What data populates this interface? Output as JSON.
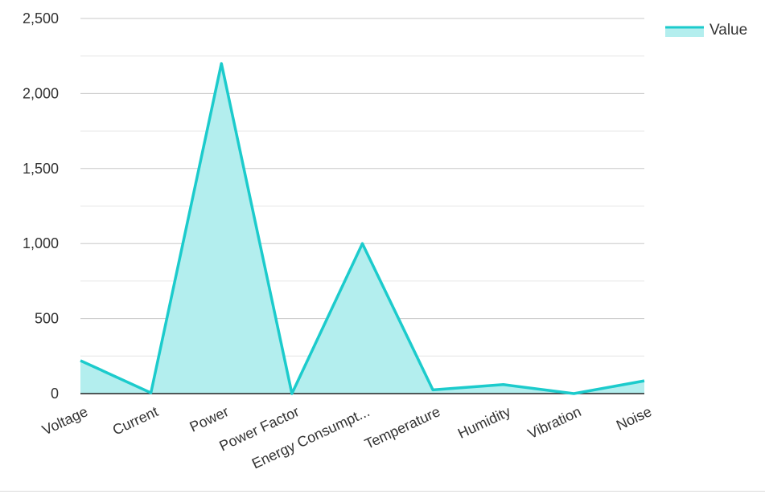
{
  "chart_data": {
    "type": "area",
    "categories": [
      "Voltage",
      "Current",
      "Power",
      "Power Factor",
      "Energy Consumpt...",
      "Temperature",
      "Humidity",
      "Vibration",
      "Noise"
    ],
    "series": [
      {
        "name": "Value",
        "values": [
          220,
          5,
          2200,
          0,
          1000,
          25,
          60,
          0,
          85
        ]
      }
    ],
    "y_ticks": [
      "0",
      "500",
      "1,000",
      "1,500",
      "2,000",
      "2,500"
    ],
    "ylim": [
      0,
      2500
    ],
    "y_tick_values": [
      0,
      500,
      1000,
      1500,
      2000,
      2500
    ],
    "minor_gridlines": true,
    "legend": "top-right",
    "colors": {
      "line": "#1ccbcc",
      "fill": "#b3eeee",
      "grid": "#c8c8c8",
      "grid_minor": "#e6e6e6",
      "axis": "#222222"
    }
  }
}
